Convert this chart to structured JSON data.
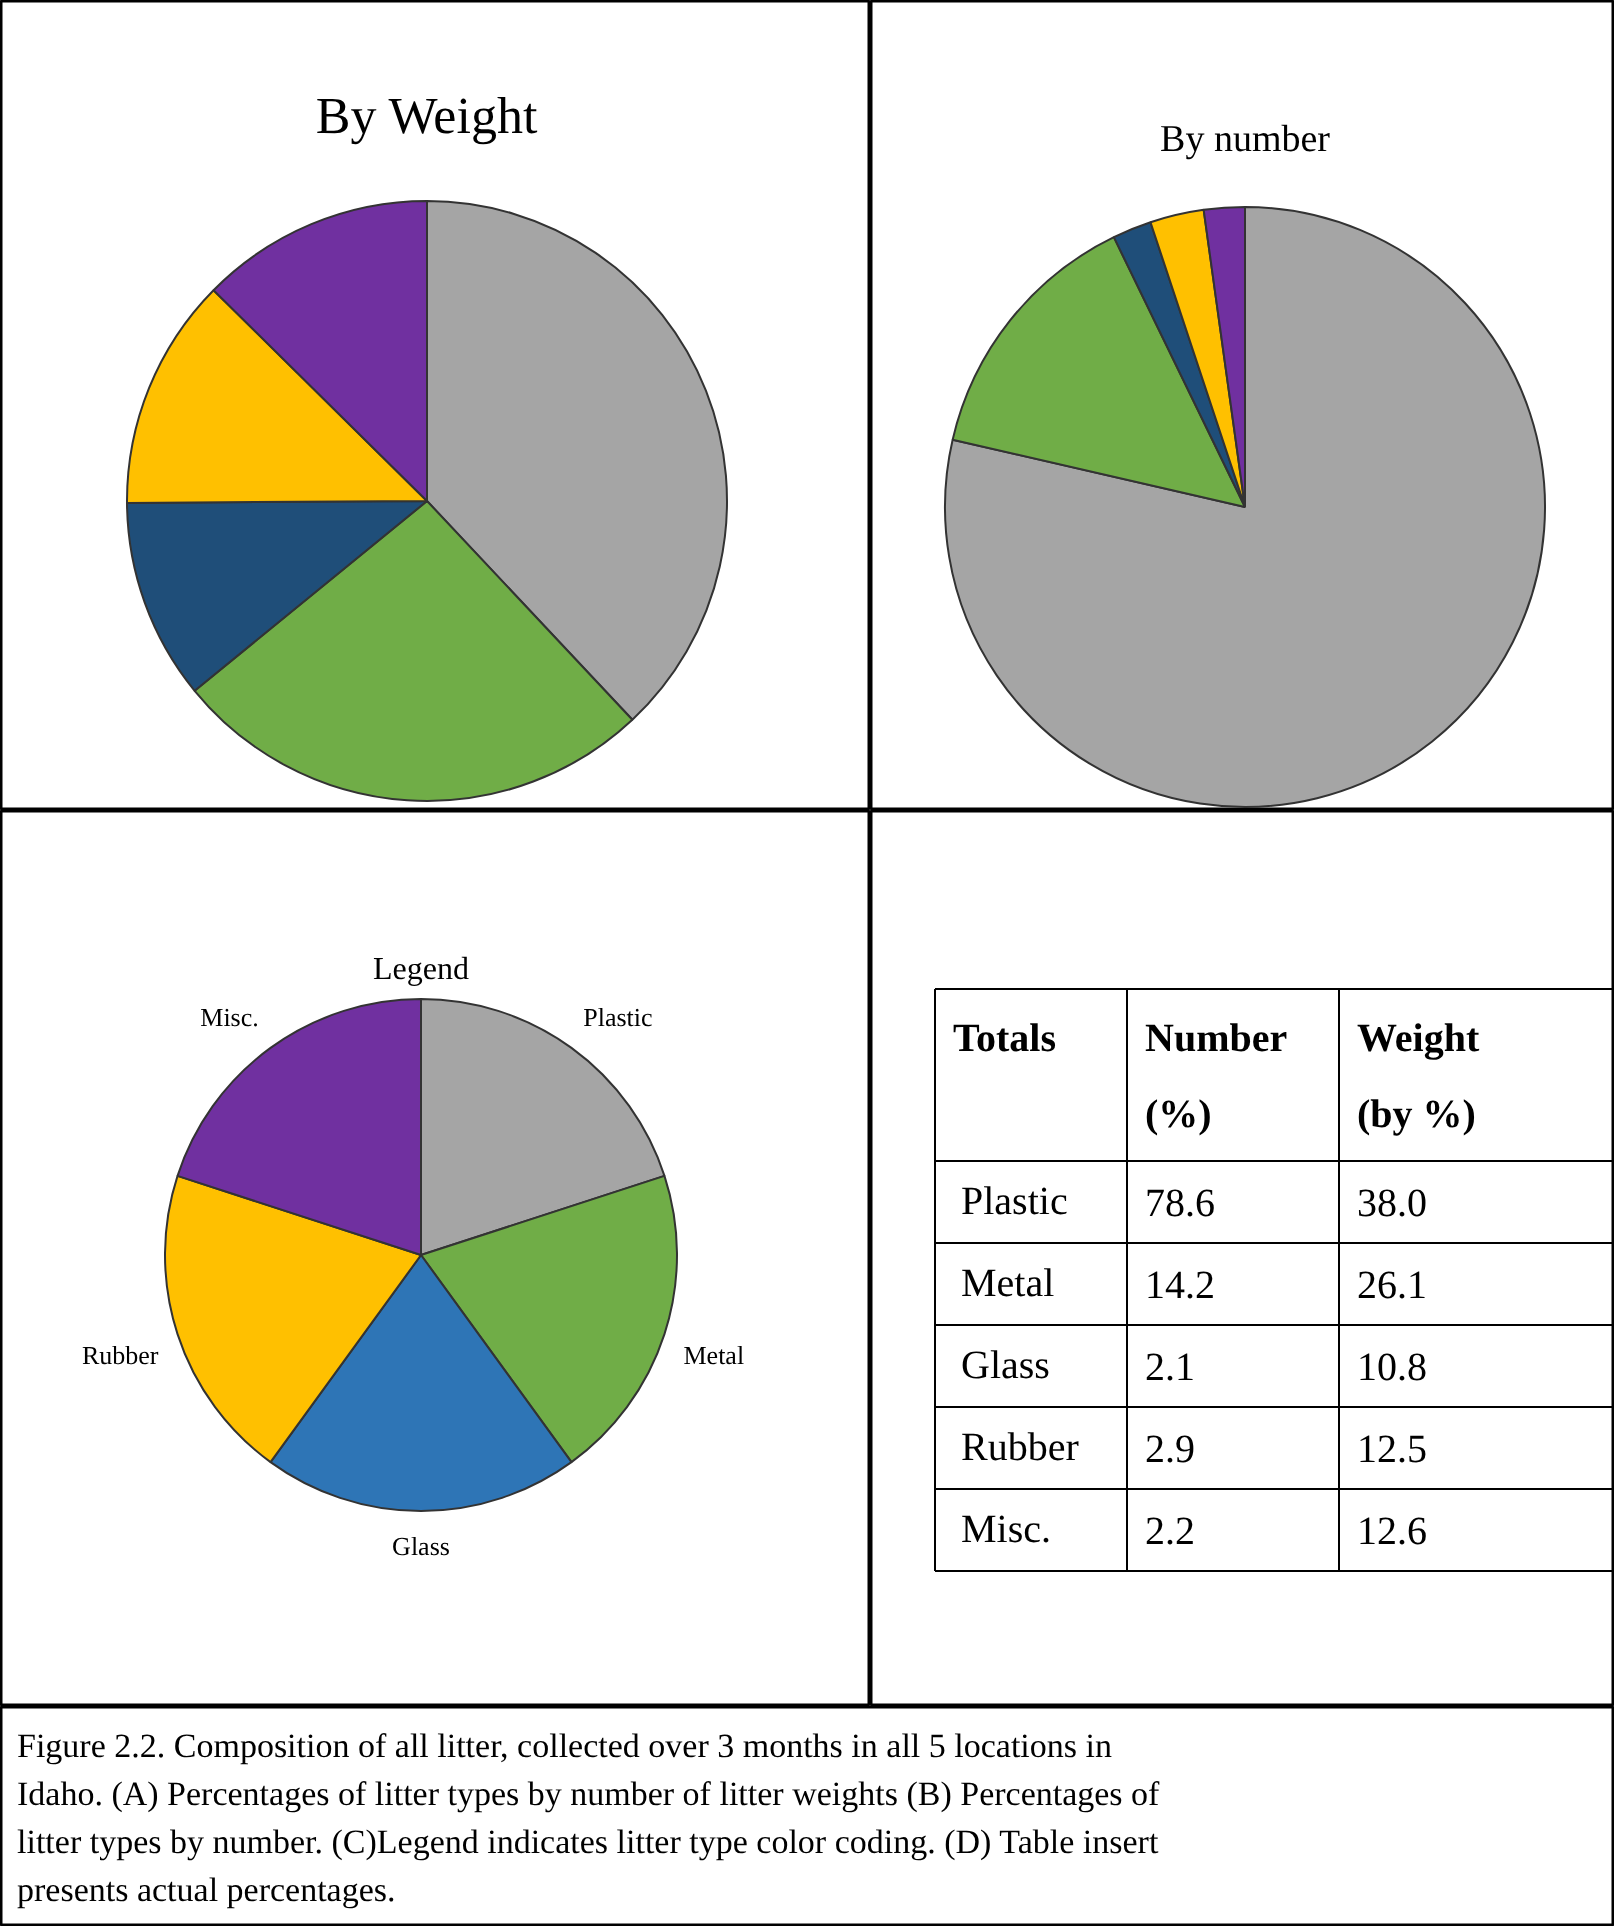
{
  "chart_data": [
    {
      "type": "pie",
      "title": "By Weight",
      "categories": [
        null,
        null,
        null,
        null,
        null
      ],
      "values": [
        38.0,
        26.1,
        10.8,
        12.5,
        12.6
      ],
      "colors": [
        "#a5a5a5",
        "#70ad47",
        "#1f4e79",
        "#ffc000",
        "#7030a0"
      ]
    },
    {
      "type": "pie",
      "title": "By number",
      "categories": [
        null,
        null,
        null,
        null,
        null
      ],
      "values": [
        78.6,
        14.2,
        2.1,
        2.9,
        2.2
      ],
      "colors": [
        "#a5a5a5",
        "#70ad47",
        "#1f4e79",
        "#ffc000",
        "#7030a0"
      ]
    },
    {
      "type": "pie",
      "title": "Legend",
      "categories": [
        "Plastic",
        "Metal",
        "Glass",
        "Rubber",
        "Misc."
      ],
      "values": [
        20,
        20,
        20,
        20,
        20
      ],
      "colors": [
        "#a5a5a5",
        "#70ad47",
        "#2e75b6",
        "#ffc000",
        "#7030a0"
      ]
    },
    {
      "type": "other",
      "title": "Totals",
      "data_labels": true,
      "categories": [
        "Plastic",
        "Metal",
        "Glass",
        "Rubber",
        "Misc."
      ],
      "series": [
        {
          "name": "Number (%)",
          "values": [
            78.6,
            14.2,
            2.1,
            2.9,
            2.2
          ],
          "value_labels": [
            "78.6",
            "14.2",
            "2.1",
            "2.9",
            "2.2"
          ]
        },
        {
          "name": "Weight (by %)",
          "values": [
            38.0,
            26.1,
            10.8,
            12.5,
            12.6
          ],
          "value_labels": [
            "38.0",
            "26.1",
            "10.8",
            "12.5",
            "12.6"
          ]
        }
      ],
      "annotations": [
        "Figure 2.2. Composition of all litter, collected over 3 months in all 5 locations in Idaho. (A) Percentages of litter types by number of litter weights (B) Percentages of litter types by number. (C)Legend indicates litter type color coding. (D) Table insert presents actual percentages."
      ]
    }
  ]
}
